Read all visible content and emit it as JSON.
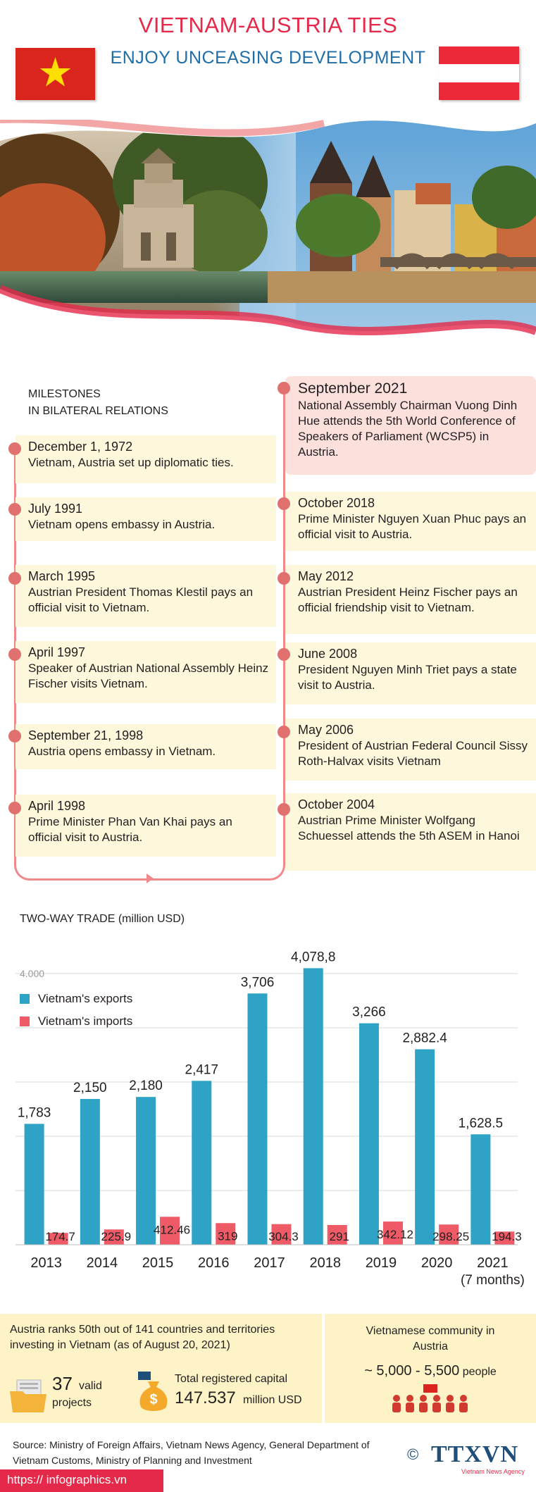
{
  "header": {
    "title": "VIETNAM-AUSTRIA TIES",
    "subtitle": "ENJOY UNCEASING DEVELOPMENT"
  },
  "flags": {
    "vietnam": {
      "field": "#da251d",
      "star": "#ffde00"
    },
    "austria": {
      "stripes": [
        "#ed2939",
        "#ffffff",
        "#ed2939"
      ]
    }
  },
  "milestones": {
    "heading_line1": "MILESTONES",
    "heading_line2": "IN BILATERAL RELATIONS",
    "left": [
      {
        "date": "December 1, 1972",
        "text": "Vietnam, Austria set up diplomatic ties."
      },
      {
        "date": "July 1991",
        "text": "Vietnam opens embassy in Austria."
      },
      {
        "date": "March 1995",
        "text": "Austrian President Thomas Klestil pays an official visit to Vietnam."
      },
      {
        "date": "April 1997",
        "text": "Speaker of Austrian National Assembly Heinz Fischer visits Vietnam."
      },
      {
        "date": "September 21, 1998",
        "text": "Austria opens embassy in Vietnam."
      },
      {
        "date": "April 1998",
        "text": "Prime Minister Phan Van Khai pays an official visit to Austria."
      }
    ],
    "right": [
      {
        "date": "September 2021",
        "text": "National Assembly Chairman Vuong Dinh Hue attends the 5th World Conference of Speakers of Parliament (WCSP5) in Austria."
      },
      {
        "date": "October 2018",
        "text": "Prime Minister Nguyen Xuan Phuc pays an official visit to Austria."
      },
      {
        "date": "May 2012",
        "text": "Austrian President Heinz Fischer pays an official friendship visit to Vietnam."
      },
      {
        "date": "June 2008",
        "text": "President Nguyen Minh Triet pays a state visit to Austria."
      },
      {
        "date": "May 2006",
        "text": "President of Austrian Federal Council Sissy Roth-Halvax visits Vietnam"
      },
      {
        "date": "October 2004",
        "text": "Austrian Prime Minister Wolfgang Schuessel attends the 5th ASEM in Hanoi"
      }
    ]
  },
  "chart_data": {
    "type": "bar",
    "title": "TWO-WAY TRADE (million  USD)",
    "categories": [
      "2013",
      "2014",
      "2015",
      "2016",
      "2017",
      "2018",
      "2019",
      "2020",
      "2021"
    ],
    "category_note": "(7 months)",
    "series": [
      {
        "name": "Vietnam's exports",
        "color": "#2ea3c6",
        "values": [
          1783,
          2150,
          2180,
          2417,
          3706,
          4078.8,
          3266,
          2882.4,
          1628.5
        ],
        "labels": [
          "1,783",
          "2,150",
          "2,180",
          "2,417",
          "3,706",
          "4,078,8",
          "3,266",
          "2,882.4",
          "1,628.5"
        ]
      },
      {
        "name": "Vietnam's imports",
        "color": "#ee5a66",
        "values": [
          174.7,
          225.9,
          412.46,
          319,
          304.3,
          291,
          342.12,
          298.25,
          194.3
        ],
        "labels": [
          "174.7",
          "225.9",
          "412.46",
          "319",
          "304.3",
          "291",
          "342.12",
          "298.25",
          "194.3"
        ]
      }
    ],
    "ytick_label": "4.000",
    "ylim": [
      0,
      4000
    ],
    "grid": true,
    "legend_position": "top-left"
  },
  "investment": {
    "headline": "Austria ranks 50th out of 141 countries and territories investing in Vietnam (as of August 20, 2021)",
    "projects_count": "37",
    "projects_label_1": "valid",
    "projects_label_2": "projects",
    "capital_label": "Total registered capital",
    "capital_value": "147.537",
    "capital_unit": "million USD"
  },
  "community": {
    "title_line1": "Vietnamese community in",
    "title_line2": "Austria",
    "value": "~ 5,000 - 5,500",
    "unit": "people"
  },
  "footer": {
    "source": "Source: Ministry of Foreign Affairs, Vietnam News Agency, General Department of Vietnam Customs, Ministry of Planning and Investment",
    "copyright": "©",
    "logo": "TTXVN",
    "logo_sub": "Vietnam News Agency",
    "url": "https:// infographics.vn"
  }
}
